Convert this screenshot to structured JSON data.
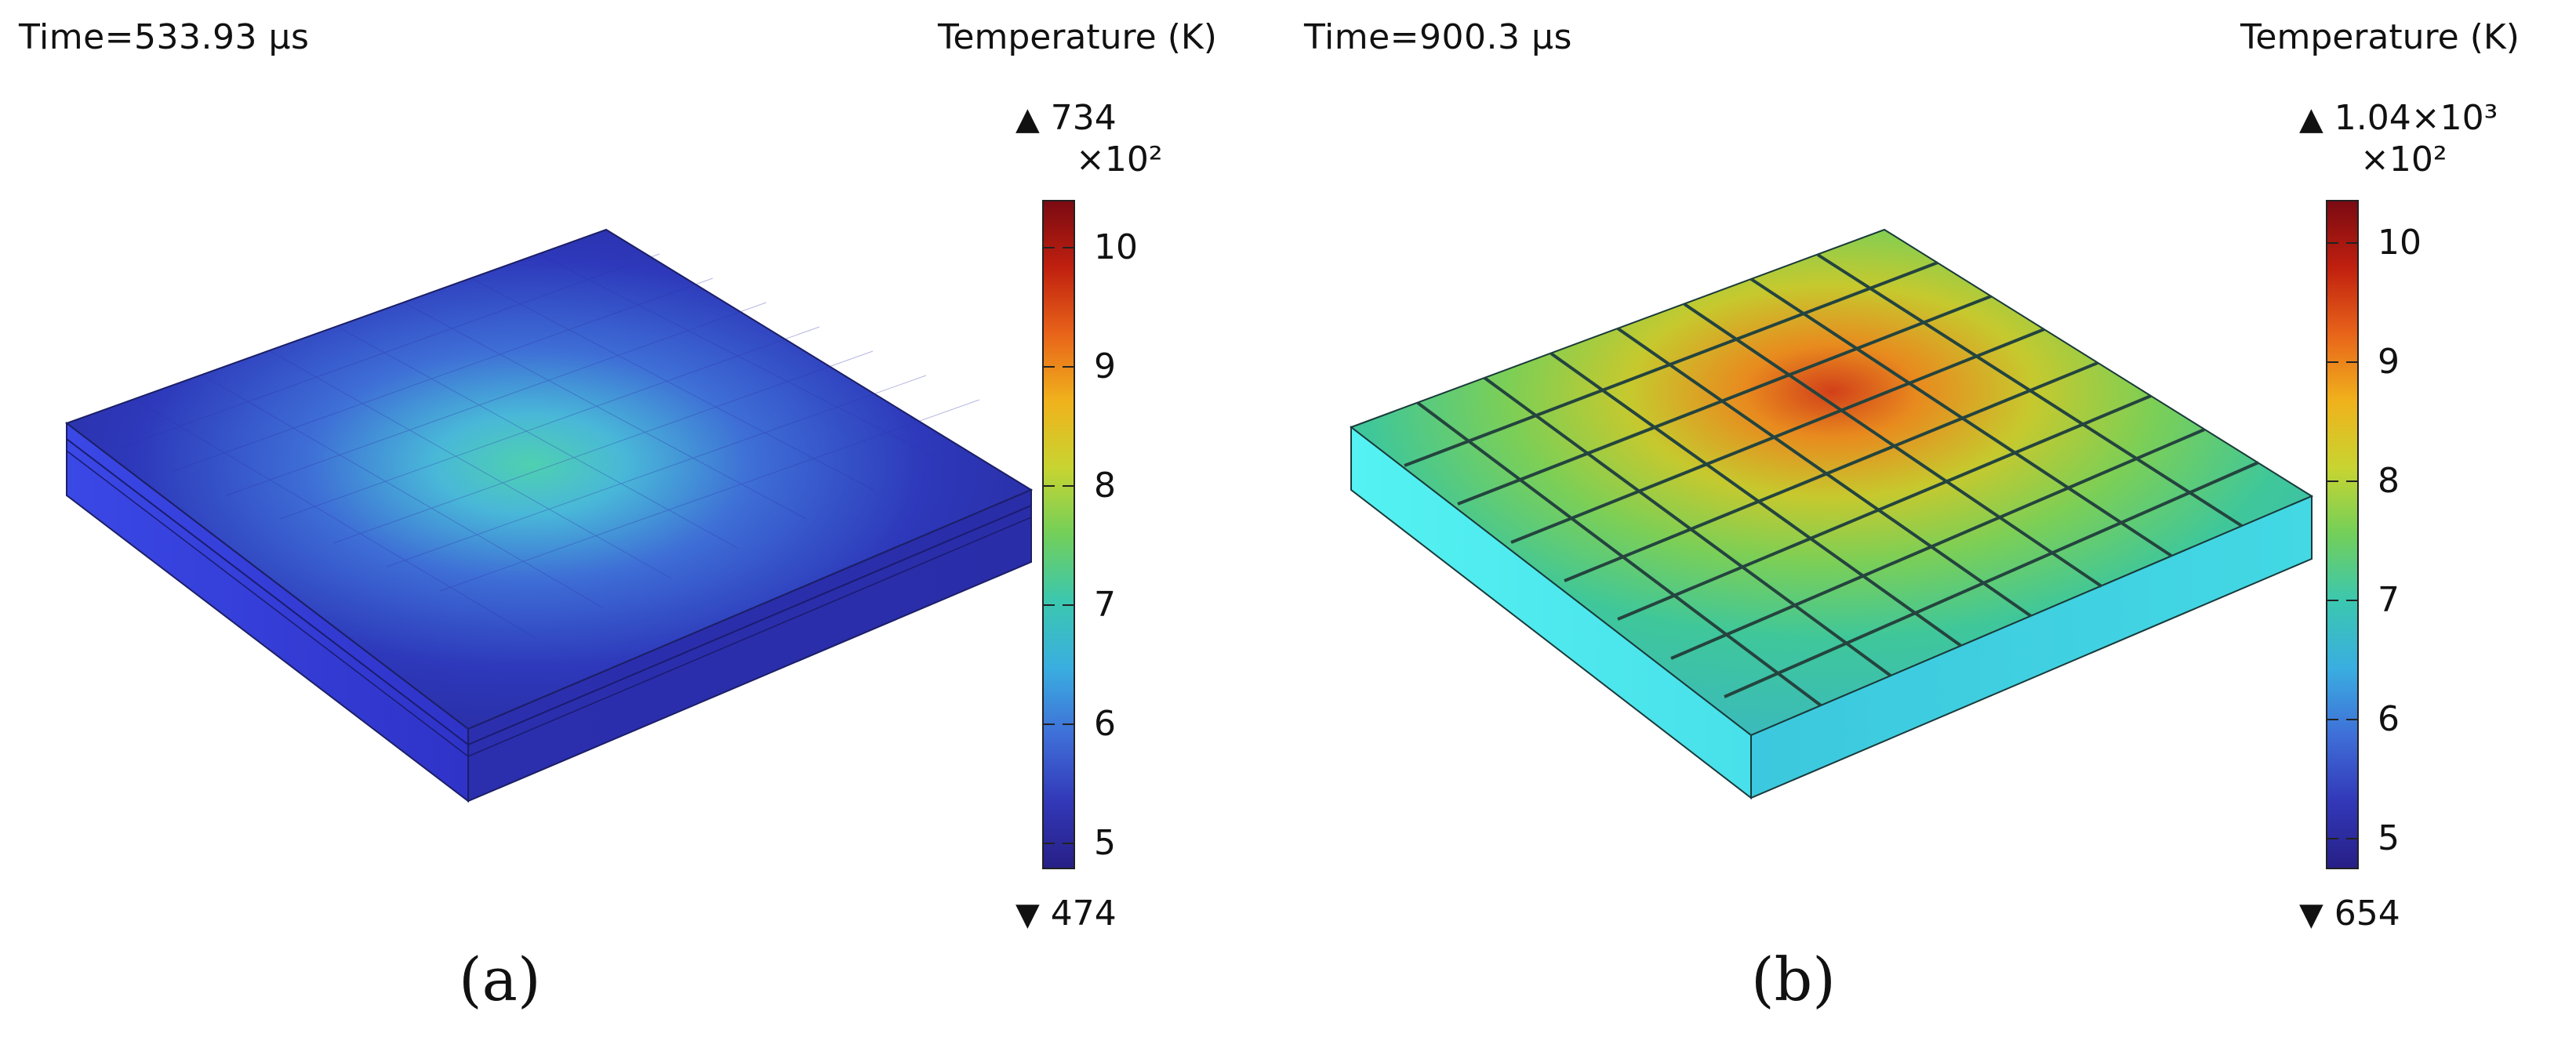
{
  "panels": {
    "a": {
      "time": "Time=533.93 μs",
      "legend_title": "Temperature (K)",
      "max": "734",
      "min": "474",
      "scale": "×10²",
      "ticks": [
        "10",
        "9",
        "8",
        "7",
        "6",
        "5"
      ],
      "caption": "(a)",
      "max_marker": "▲",
      "min_marker": "▼"
    },
    "b": {
      "time": "Time=900.3 μs",
      "legend_title": "Temperature (K)",
      "max": "1.04×10³",
      "min": "654",
      "scale": "×10²",
      "ticks": [
        "10",
        "9",
        "8",
        "7",
        "6",
        "5"
      ],
      "caption": "(b)",
      "max_marker": "▲",
      "min_marker": "▼"
    }
  },
  "colormap": {
    "stops": [
      "#7a0a12",
      "#c0200f",
      "#e8641a",
      "#f0b21c",
      "#c8d431",
      "#72cf5a",
      "#3bc7b0",
      "#3aaee0",
      "#3f6fd8",
      "#3238b8",
      "#271f86"
    ],
    "tick_values": [
      10,
      9,
      8,
      7,
      6,
      5
    ],
    "range": [
      4.74,
      10.35
    ]
  }
}
